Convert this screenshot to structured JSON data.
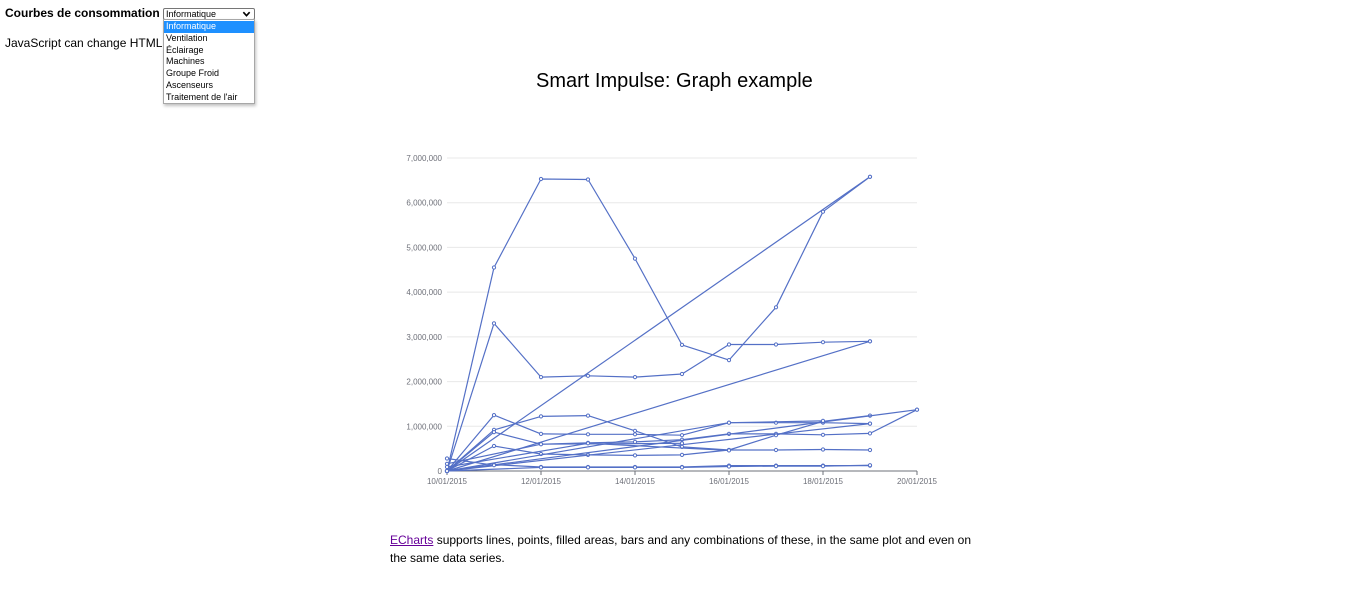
{
  "form": {
    "label": "Courbes de consommation",
    "selected": "Informatique",
    "options": [
      "Informatique",
      "Ventilation",
      "Éclairage",
      "Machines",
      "Groupe Froid",
      "Ascenseurs",
      "Traitement de l'air"
    ]
  },
  "demo_text": "JavaScript can change HTML",
  "chart": {
    "title": "Smart Impulse: Graph example"
  },
  "description": {
    "link": "ECharts",
    "text": " supports lines, points, filled areas, bars and any combinations of these, in the same plot and even on the same data series."
  },
  "colors": {
    "series": "#5470c6",
    "grid": "#e8e8e8",
    "axis": "#6e7079",
    "selected_option": "#1e90ff",
    "link": "#660099"
  },
  "icons": {
    "dropdown": "chevron-down-icon"
  },
  "chart_data": {
    "type": "line",
    "xlabel": "",
    "ylabel": "",
    "x_axis_type": "time",
    "xlim": [
      "2015-01-10",
      "2015-01-20"
    ],
    "ylim": [
      0,
      7000000
    ],
    "x_ticks": [
      "10/01/2015",
      "12/01/2015",
      "14/01/2015",
      "16/01/2015",
      "18/01/2015",
      "20/01/2015"
    ],
    "y_ticks": [
      "0",
      "1,000,000",
      "2,000,000",
      "3,000,000",
      "4,000,000",
      "5,000,000",
      "6,000,000",
      "7,000,000"
    ],
    "grid": true,
    "series": [
      {
        "points": [
          [
            "2015-01-10",
            0
          ],
          [
            "2015-01-11",
            4550000
          ],
          [
            "2015-01-12",
            6530000
          ],
          [
            "2015-01-13",
            6520000
          ],
          [
            "2015-01-14",
            4750000
          ],
          [
            "2015-01-15",
            2820000
          ],
          [
            "2015-01-16",
            2480000
          ],
          [
            "2015-01-17",
            3660000
          ],
          [
            "2015-01-18",
            5800000
          ],
          [
            "2015-01-19",
            6580000
          ]
        ]
      },
      {
        "points": [
          [
            "2015-01-10",
            0
          ],
          [
            "2015-01-11",
            3300000
          ],
          [
            "2015-01-12",
            2100000
          ],
          [
            "2015-01-13",
            2130000
          ],
          [
            "2015-01-14",
            2100000
          ],
          [
            "2015-01-15",
            2170000
          ],
          [
            "2015-01-16",
            2830000
          ],
          [
            "2015-01-17",
            2830000
          ],
          [
            "2015-01-18",
            2880000
          ],
          [
            "2015-01-19",
            2900000
          ]
        ]
      },
      {
        "points": [
          [
            "2015-01-10",
            0
          ],
          [
            "2015-01-19",
            6580000
          ]
        ]
      },
      {
        "points": [
          [
            "2015-01-10",
            0
          ],
          [
            "2015-01-19",
            2900000
          ]
        ]
      },
      {
        "points": [
          [
            "2015-01-10",
            0
          ],
          [
            "2015-01-11",
            1250000
          ],
          [
            "2015-01-12",
            830000
          ],
          [
            "2015-01-13",
            820000
          ],
          [
            "2015-01-14",
            820000
          ],
          [
            "2015-01-15",
            800000
          ],
          [
            "2015-01-16",
            1080000
          ],
          [
            "2015-01-17",
            1080000
          ],
          [
            "2015-01-18",
            1080000
          ],
          [
            "2015-01-19",
            1060000
          ]
        ]
      },
      {
        "points": [
          [
            "2015-01-10",
            0
          ],
          [
            "2015-01-11",
            920000
          ],
          [
            "2015-01-12",
            1220000
          ],
          [
            "2015-01-13",
            1240000
          ],
          [
            "2015-01-14",
            900000
          ],
          [
            "2015-01-15",
            540000
          ],
          [
            "2015-01-16",
            470000
          ],
          [
            "2015-01-17",
            470000
          ],
          [
            "2015-01-18",
            480000
          ],
          [
            "2015-01-19",
            470000
          ]
        ]
      },
      {
        "points": [
          [
            "2015-01-10",
            0
          ],
          [
            "2015-01-11",
            870000
          ],
          [
            "2015-01-12",
            600000
          ],
          [
            "2015-01-13",
            630000
          ],
          [
            "2015-01-14",
            650000
          ],
          [
            "2015-01-15",
            700000
          ],
          [
            "2015-01-16",
            830000
          ],
          [
            "2015-01-17",
            830000
          ],
          [
            "2015-01-18",
            810000
          ],
          [
            "2015-01-19",
            840000
          ],
          [
            "2015-01-20",
            1370000
          ]
        ]
      },
      {
        "points": [
          [
            "2015-01-10",
            0
          ],
          [
            "2015-01-11",
            560000
          ],
          [
            "2015-01-12",
            380000
          ],
          [
            "2015-01-13",
            360000
          ],
          [
            "2015-01-14",
            350000
          ],
          [
            "2015-01-15",
            360000
          ],
          [
            "2015-01-16",
            470000
          ],
          [
            "2015-01-17",
            800000
          ],
          [
            "2015-01-18",
            1110000
          ],
          [
            "2015-01-19",
            1240000
          ]
        ]
      },
      {
        "points": [
          [
            "2015-01-10",
            0
          ],
          [
            "2015-01-11",
            140000
          ],
          [
            "2015-01-12",
            90000
          ],
          [
            "2015-01-13",
            90000
          ],
          [
            "2015-01-14",
            90000
          ],
          [
            "2015-01-15",
            90000
          ],
          [
            "2015-01-16",
            120000
          ],
          [
            "2015-01-17",
            120000
          ],
          [
            "2015-01-18",
            120000
          ],
          [
            "2015-01-19",
            120000
          ]
        ]
      },
      {
        "points": [
          [
            "2015-01-10",
            0
          ],
          [
            "2015-01-12",
            80000
          ],
          [
            "2015-01-13",
            80000
          ],
          [
            "2015-01-14",
            80000
          ],
          [
            "2015-01-15",
            80000
          ],
          [
            "2015-01-16",
            100000
          ],
          [
            "2015-01-17",
            110000
          ],
          [
            "2015-01-18",
            110000
          ],
          [
            "2015-01-19",
            130000
          ]
        ]
      },
      {
        "points": [
          [
            "2015-01-10",
            0
          ],
          [
            "2015-01-19",
            1060000
          ]
        ]
      },
      {
        "points": [
          [
            "2015-01-10",
            0
          ],
          [
            "2015-01-20",
            1370000
          ]
        ]
      },
      {
        "points": [
          [
            "2015-01-10",
            0
          ],
          [
            "2015-01-16",
            1080000
          ],
          [
            "2015-01-18",
            1120000
          ]
        ]
      },
      {
        "points": [
          [
            "2015-01-10",
            280000
          ],
          [
            "2015-01-11",
            130000
          ]
        ]
      },
      {
        "points": [
          [
            "2015-01-10",
            160000
          ],
          [
            "2015-01-12",
            600000
          ],
          [
            "2015-01-15",
            620000
          ]
        ]
      },
      {
        "points": [
          [
            "2015-01-10",
            90000
          ],
          [
            "2015-01-13",
            620000
          ],
          [
            "2015-01-16",
            460000
          ]
        ]
      }
    ]
  }
}
